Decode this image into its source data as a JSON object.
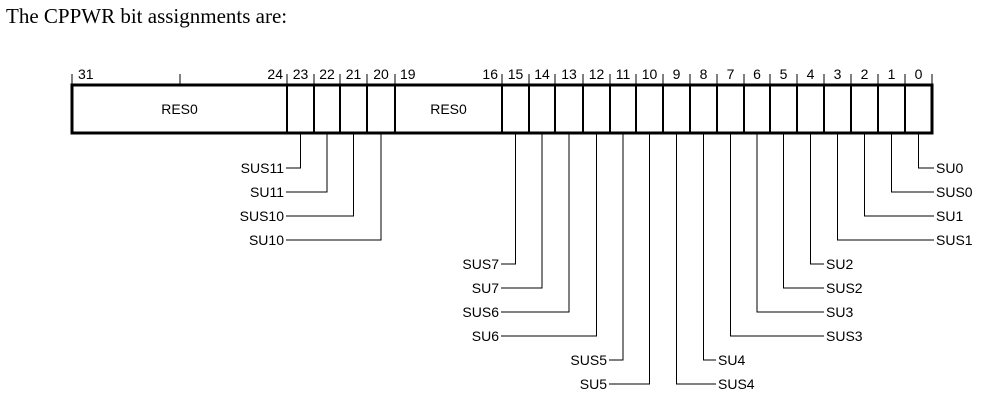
{
  "heading": "The CPPWR bit assignments are:",
  "register": {
    "bit_numbers": [
      "31",
      "24",
      "23",
      "22",
      "21",
      "20",
      "19",
      "16",
      "15",
      "14",
      "13",
      "12",
      "11",
      "10",
      "9",
      "8",
      "7",
      "6",
      "5",
      "4",
      "3",
      "2",
      "1",
      "0"
    ],
    "reserved_fields": [
      {
        "label": "RES0",
        "high_bit": 31,
        "low_bit": 24
      },
      {
        "label": "RES0",
        "high_bit": 19,
        "low_bit": 16
      }
    ]
  },
  "signals": [
    {
      "bit": 23,
      "label": "SUS11",
      "side": "left"
    },
    {
      "bit": 22,
      "label": "SU11",
      "side": "left"
    },
    {
      "bit": 21,
      "label": "SUS10",
      "side": "left"
    },
    {
      "bit": 20,
      "label": "SU10",
      "side": "left"
    },
    {
      "bit": 15,
      "label": "SUS7",
      "side": "left"
    },
    {
      "bit": 14,
      "label": "SU7",
      "side": "left"
    },
    {
      "bit": 13,
      "label": "SUS6",
      "side": "left"
    },
    {
      "bit": 12,
      "label": "SU6",
      "side": "left"
    },
    {
      "bit": 11,
      "label": "SUS5",
      "side": "left"
    },
    {
      "bit": 10,
      "label": "SU5",
      "side": "left"
    },
    {
      "bit": 9,
      "label": "SUS4",
      "side": "right"
    },
    {
      "bit": 8,
      "label": "SU4",
      "side": "right"
    },
    {
      "bit": 7,
      "label": "SUS3",
      "side": "right"
    },
    {
      "bit": 6,
      "label": "SU3",
      "side": "right"
    },
    {
      "bit": 5,
      "label": "SUS2",
      "side": "right"
    },
    {
      "bit": 4,
      "label": "SU2",
      "side": "right"
    },
    {
      "bit": 3,
      "label": "SUS1",
      "side": "right"
    },
    {
      "bit": 2,
      "label": "SU1",
      "side": "right"
    },
    {
      "bit": 1,
      "label": "SUS0",
      "side": "right"
    },
    {
      "bit": 0,
      "label": "SU0",
      "side": "right"
    }
  ]
}
